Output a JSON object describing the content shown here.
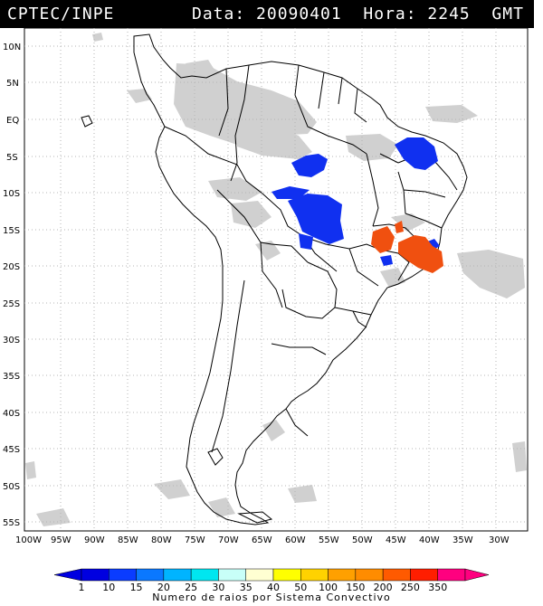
{
  "header": {
    "source": "CPTEC/INPE",
    "info": "Data: 20090401  Hora: 2245  GMT"
  },
  "map": {
    "lat_labels": [
      "10N",
      "5N",
      "EQ",
      "5S",
      "10S",
      "15S",
      "20S",
      "25S",
      "30S",
      "35S",
      "40S",
      "45S",
      "50S",
      "55S"
    ],
    "lon_labels": [
      "100W",
      "95W",
      "90W",
      "85W",
      "80W",
      "75W",
      "70W",
      "65W",
      "60W",
      "55W",
      "50W",
      "45W",
      "40W",
      "35W",
      "30W"
    ],
    "grid": "dotted",
    "colors": {
      "land_outline": "#000000",
      "cloud": "#c8c8c8",
      "low_activity": "#1030f0",
      "high_activity": "#f05010"
    }
  },
  "colorbar": {
    "values": [
      "1",
      "10",
      "15",
      "20",
      "25",
      "30",
      "35",
      "40",
      "50",
      "100",
      "150",
      "200",
      "250",
      "350"
    ],
    "colors": [
      "#0000e0",
      "#0a3cff",
      "#0a78ff",
      "#00b4ff",
      "#00e6f0",
      "#c8fff8",
      "#ffffd2",
      "#ffff00",
      "#ffd200",
      "#ffa000",
      "#ff8c00",
      "#ff5a00",
      "#ff1e00",
      "#ff007f"
    ],
    "title": "Numero de raios por Sistema Convectivo"
  }
}
